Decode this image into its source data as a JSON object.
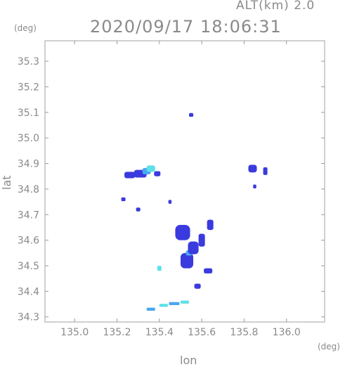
{
  "header": {
    "altitude": "ALT(km)  2.0",
    "timestamp": "2020/09/17 18:06:31"
  },
  "chart_data": {
    "type": "heatmap",
    "title": "2020/09/17 18:06:31",
    "subtitle": "ALT(km)  2.0",
    "xlabel": "lon",
    "ylabel": "lat",
    "x_unit": "(deg)",
    "y_unit": "(deg)",
    "xlim": [
      134.86,
      136.18
    ],
    "ylim": [
      34.28,
      35.38
    ],
    "x_ticks": [
      "135.0",
      "135.2",
      "135.4",
      "135.6",
      "135.8",
      "136.0"
    ],
    "y_ticks": [
      "35.3",
      "35.2",
      "35.1",
      "35.0",
      "34.9",
      "34.8",
      "34.7",
      "34.6",
      "34.5",
      "34.4",
      "34.3"
    ],
    "grid": false,
    "colors": {
      "low": "#3a3adf",
      "mid": "#4aa8f0",
      "high": "#5fe0e8",
      "axis": "#9a9a9a"
    },
    "cells": [
      {
        "lon": 135.26,
        "lat": 34.855,
        "w": 0.05,
        "h": 0.025,
        "level": "low"
      },
      {
        "lon": 135.31,
        "lat": 34.86,
        "w": 0.06,
        "h": 0.03,
        "level": "low"
      },
      {
        "lon": 135.34,
        "lat": 34.87,
        "w": 0.04,
        "h": 0.025,
        "level": "mid"
      },
      {
        "lon": 135.36,
        "lat": 34.88,
        "w": 0.04,
        "h": 0.025,
        "level": "high"
      },
      {
        "lon": 135.39,
        "lat": 34.86,
        "w": 0.03,
        "h": 0.02,
        "level": "low"
      },
      {
        "lon": 135.51,
        "lat": 34.63,
        "w": 0.07,
        "h": 0.06,
        "level": "low"
      },
      {
        "lon": 135.53,
        "lat": 34.52,
        "w": 0.06,
        "h": 0.06,
        "level": "low"
      },
      {
        "lon": 135.54,
        "lat": 34.55,
        "w": 0.03,
        "h": 0.02,
        "level": "mid"
      },
      {
        "lon": 135.56,
        "lat": 34.57,
        "w": 0.05,
        "h": 0.05,
        "level": "low"
      },
      {
        "lon": 135.6,
        "lat": 34.6,
        "w": 0.03,
        "h": 0.05,
        "level": "low"
      },
      {
        "lon": 135.64,
        "lat": 34.66,
        "w": 0.03,
        "h": 0.04,
        "level": "low"
      },
      {
        "lon": 135.63,
        "lat": 34.48,
        "w": 0.04,
        "h": 0.02,
        "level": "low"
      },
      {
        "lon": 135.58,
        "lat": 34.42,
        "w": 0.03,
        "h": 0.02,
        "level": "low"
      },
      {
        "lon": 135.4,
        "lat": 34.49,
        "w": 0.02,
        "h": 0.02,
        "level": "high"
      },
      {
        "lon": 135.36,
        "lat": 34.33,
        "w": 0.04,
        "h": 0.012,
        "level": "mid"
      },
      {
        "lon": 135.42,
        "lat": 34.345,
        "w": 0.04,
        "h": 0.012,
        "level": "high"
      },
      {
        "lon": 135.47,
        "lat": 34.352,
        "w": 0.05,
        "h": 0.012,
        "level": "mid"
      },
      {
        "lon": 135.52,
        "lat": 34.358,
        "w": 0.04,
        "h": 0.012,
        "level": "high"
      },
      {
        "lon": 135.84,
        "lat": 34.88,
        "w": 0.04,
        "h": 0.03,
        "level": "low"
      },
      {
        "lon": 135.9,
        "lat": 34.87,
        "w": 0.02,
        "h": 0.03,
        "level": "low"
      },
      {
        "lon": 135.55,
        "lat": 35.09,
        "w": 0.02,
        "h": 0.015,
        "level": "low"
      },
      {
        "lon": 135.23,
        "lat": 34.76,
        "w": 0.02,
        "h": 0.015,
        "level": "low"
      },
      {
        "lon": 135.3,
        "lat": 34.72,
        "w": 0.02,
        "h": 0.015,
        "level": "low"
      },
      {
        "lon": 135.45,
        "lat": 34.75,
        "w": 0.015,
        "h": 0.015,
        "level": "low"
      },
      {
        "lon": 135.85,
        "lat": 34.81,
        "w": 0.015,
        "h": 0.015,
        "level": "low"
      }
    ]
  }
}
